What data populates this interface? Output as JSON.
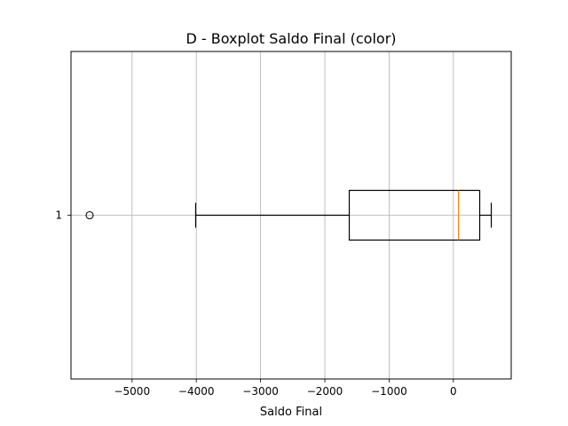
{
  "chart_data": {
    "type": "boxplot",
    "title": "D - Boxplot Saldo Final (color)",
    "xlabel": "Saldo Final",
    "ylabel": "",
    "orientation": "horizontal",
    "xlim": [
      -5950,
      900
    ],
    "ylim": [
      0.5,
      1.5
    ],
    "x_ticks": [
      -5000,
      -4000,
      -3000,
      -2000,
      -1000,
      0
    ],
    "x_tick_labels": [
      "−5000",
      "−4000",
      "−3000",
      "−2000",
      "−1000",
      "0"
    ],
    "y_tick_labels": [
      "1"
    ],
    "grid": true,
    "boxes": [
      {
        "label": "1",
        "position": 1,
        "whisker_low": -4010,
        "q1": -1620,
        "median": 80,
        "q3": 410,
        "whisker_high": 590,
        "outliers": [
          -5660
        ]
      }
    ],
    "colors": {
      "box": "#000000",
      "median": "#ff7f0e",
      "grid": "#b0b0b0",
      "outlier": "#000000"
    }
  }
}
